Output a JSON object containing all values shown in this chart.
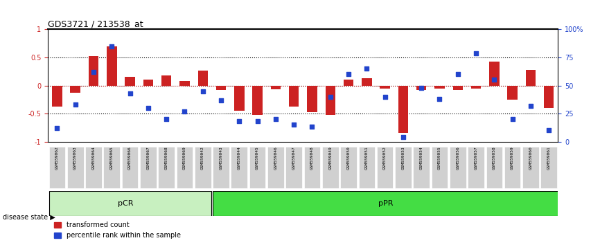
{
  "title": "GDS3721 / 213538_at",
  "samples": [
    "GSM559062",
    "GSM559063",
    "GSM559064",
    "GSM559065",
    "GSM559066",
    "GSM559067",
    "GSM559068",
    "GSM559069",
    "GSM559042",
    "GSM559043",
    "GSM559044",
    "GSM559045",
    "GSM559046",
    "GSM559047",
    "GSM559048",
    "GSM559049",
    "GSM559050",
    "GSM559051",
    "GSM559052",
    "GSM559053",
    "GSM559054",
    "GSM559055",
    "GSM559056",
    "GSM559057",
    "GSM559058",
    "GSM559059",
    "GSM559060",
    "GSM559061"
  ],
  "bar_values": [
    -0.38,
    -0.13,
    0.52,
    0.7,
    0.15,
    0.1,
    0.18,
    0.08,
    0.27,
    -0.08,
    -0.45,
    -0.52,
    -0.07,
    -0.38,
    -0.48,
    -0.52,
    0.1,
    0.13,
    -0.05,
    -0.85,
    -0.08,
    -0.05,
    -0.08,
    -0.06,
    0.42,
    -0.25,
    0.28,
    -0.4
  ],
  "dot_values": [
    0.12,
    0.33,
    0.62,
    0.85,
    0.43,
    0.3,
    0.2,
    0.27,
    0.45,
    0.37,
    0.18,
    0.18,
    0.2,
    0.15,
    0.13,
    0.4,
    0.6,
    0.65,
    0.4,
    0.04,
    0.48,
    0.38,
    0.6,
    0.79,
    0.55,
    0.2,
    0.32,
    0.1
  ],
  "pCR_count": 9,
  "pPR_count": 19,
  "ylim": [
    -1,
    1
  ],
  "yticks": [
    -1,
    -0.5,
    0,
    0.5,
    1
  ],
  "ytick_labels_left": [
    "-1",
    "-0.5",
    "0",
    "0.5",
    "1"
  ],
  "ytick_labels_right": [
    "0",
    "25",
    "50",
    "75",
    "100%"
  ],
  "dotted_lines": [
    -0.5,
    0,
    0.5
  ],
  "bar_color": "#cc2222",
  "dot_color": "#2244cc",
  "pCR_color": "#c8f0c0",
  "pPR_color": "#44dd44",
  "group_label_pCR": "pCR",
  "group_label_pPR": "pPR",
  "legend_bar": "transformed count",
  "legend_dot": "percentile rank within the sample",
  "disease_state_label": "disease state",
  "background_color": "#ffffff"
}
